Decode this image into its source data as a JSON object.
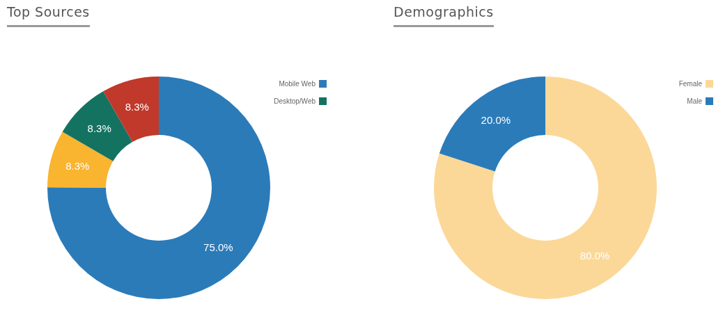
{
  "chart_data": [
    {
      "type": "donut",
      "title": "Top Sources",
      "categories": [
        "Mobile Web",
        null,
        "Desktop/Web",
        null
      ],
      "values": [
        75,
        8.3,
        8.3,
        8.3
      ],
      "value_labels": [
        "75.0%",
        "8.3%",
        "8.3%",
        "8.3%"
      ],
      "colors": [
        "#2b7bb9",
        "#f9b430",
        "#147261",
        "#c0392b"
      ],
      "legend": "top right"
    },
    {
      "type": "donut",
      "title": "Demographics",
      "categories": [
        "Female",
        "Male"
      ],
      "values": [
        80,
        20
      ],
      "value_labels": [
        "80.0%",
        "20.0%"
      ],
      "colors": [
        "#fbd898",
        "#2b7bb9"
      ],
      "legend": "top right"
    }
  ]
}
